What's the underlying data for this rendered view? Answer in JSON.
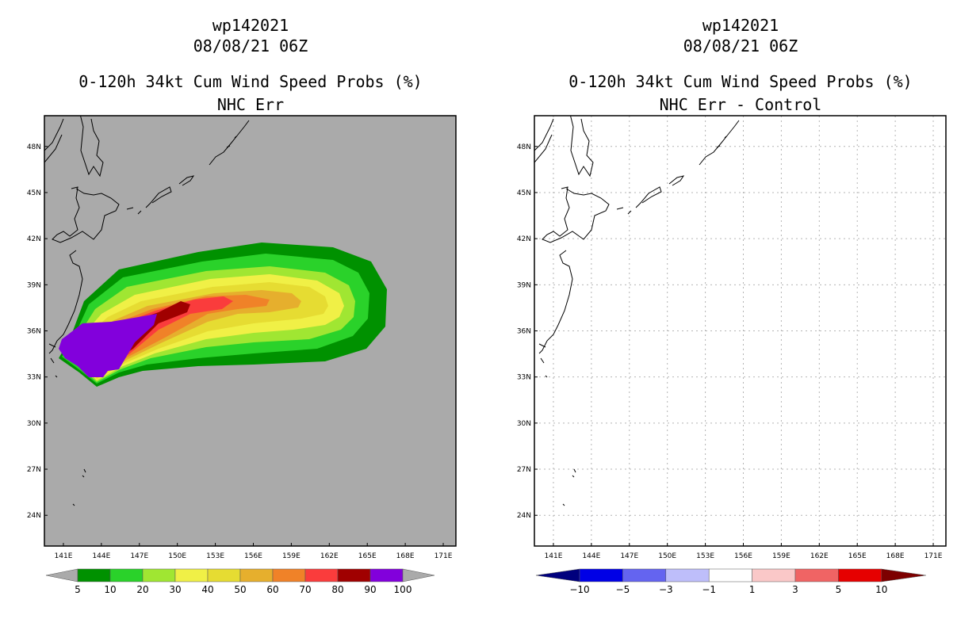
{
  "chart_data": [
    {
      "type": "heatmap",
      "storm_id": "wp142021",
      "datetime": "08/08/21 06Z",
      "title": "0-120h 34kt Cum Wind Speed Probs (%)",
      "subtitle": "NHC Err",
      "x_ticks": [
        "141E",
        "144E",
        "147E",
        "150E",
        "153E",
        "156E",
        "159E",
        "162E",
        "165E",
        "168E",
        "171E"
      ],
      "y_ticks": [
        "48N",
        "45N",
        "42N",
        "39N",
        "36N",
        "33N",
        "30N",
        "27N",
        "24N"
      ],
      "xlim": [
        139.5,
        172
      ],
      "ylim": [
        22,
        50
      ],
      "grid": false,
      "colorbar": {
        "levels": [
          "5",
          "10",
          "20",
          "30",
          "40",
          "50",
          "60",
          "70",
          "80",
          "90",
          "100"
        ],
        "colors": [
          "#009100",
          "#2ad22a",
          "#a0e632",
          "#f0f046",
          "#e6dc32",
          "#e6af2d",
          "#f08228",
          "#fa3c3c",
          "#a00000",
          "#8200dc"
        ]
      },
      "probability_bands": [
        {
          "min_pct": 5,
          "color": "#009100"
        },
        {
          "min_pct": 10,
          "color": "#2ad22a"
        },
        {
          "min_pct": 20,
          "color": "#a0e632"
        },
        {
          "min_pct": 30,
          "color": "#f0f046"
        },
        {
          "min_pct": 40,
          "color": "#e6dc32"
        },
        {
          "min_pct": 50,
          "color": "#e6af2d"
        },
        {
          "min_pct": 60,
          "color": "#f08228"
        },
        {
          "min_pct": 70,
          "color": "#fa3c3c"
        },
        {
          "min_pct": 80,
          "color": "#a00000"
        },
        {
          "min_pct": 90,
          "color": "#8200dc"
        }
      ]
    },
    {
      "type": "heatmap",
      "storm_id": "wp142021",
      "datetime": "08/08/21 06Z",
      "title": "0-120h 34kt Cum Wind Speed Probs (%)",
      "subtitle": "NHC Err - Control",
      "x_ticks": [
        "141E",
        "144E",
        "147E",
        "150E",
        "153E",
        "156E",
        "159E",
        "162E",
        "165E",
        "168E",
        "171E"
      ],
      "y_ticks": [
        "48N",
        "45N",
        "42N",
        "39N",
        "36N",
        "33N",
        "30N",
        "27N",
        "24N"
      ],
      "xlim": [
        139.5,
        172
      ],
      "ylim": [
        22,
        50
      ],
      "grid": true,
      "field_values": "all within -1 to 1 (no difference)",
      "colorbar": {
        "levels": [
          "-10",
          "-5",
          "-3",
          "-1",
          "1",
          "3",
          "5",
          "10"
        ],
        "colors": [
          "#0000e6",
          "#6464f0",
          "#bebefa",
          "#ffffff",
          "#fac8c8",
          "#f06464",
          "#e60000"
        ],
        "low_end_color": "#00007d",
        "high_end_color": "#7d0000"
      }
    }
  ]
}
